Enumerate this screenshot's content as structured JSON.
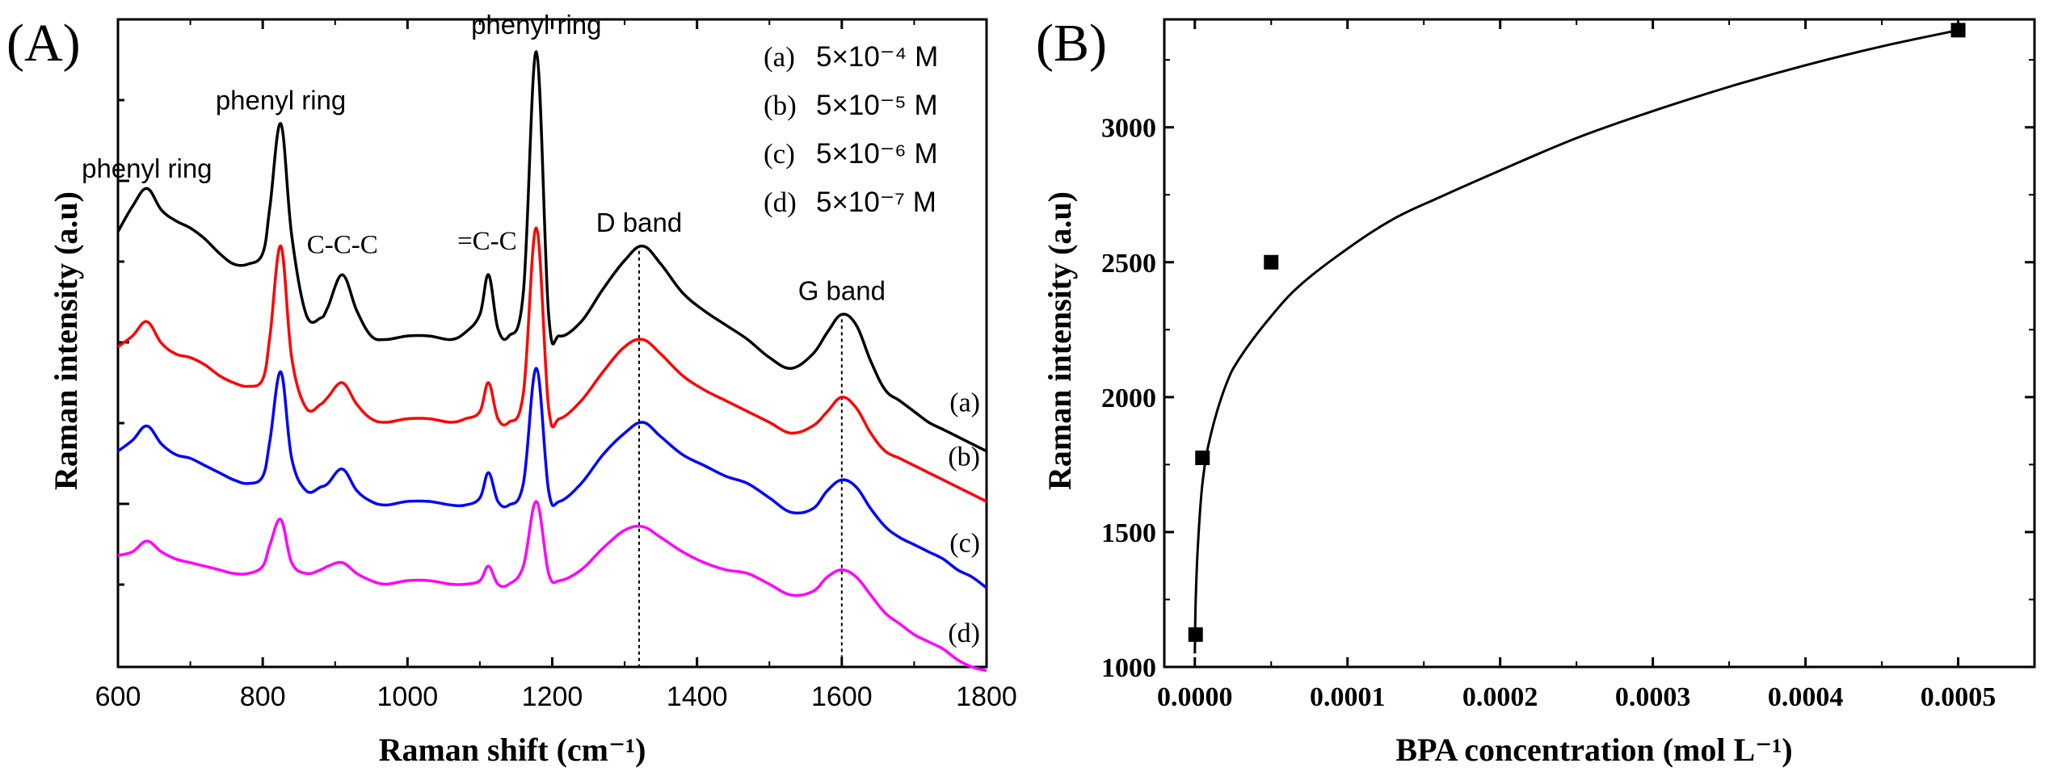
{
  "chart_data": [
    {
      "panel_label": "(A)",
      "type": "line",
      "title": "",
      "xlabel": "Raman shift (cm⁻¹)",
      "ylabel": "Raman intensity (a.u)",
      "xlim": [
        600,
        1800
      ],
      "x_ticks": [
        600,
        800,
        1000,
        1200,
        1400,
        1600,
        1800
      ],
      "ylim": [
        0,
        9
      ],
      "yticks_labels": "none",
      "legend": [
        {
          "tag": "(a)",
          "text": "5×10⁻⁴ M"
        },
        {
          "tag": "(b)",
          "text": "5×10⁻⁵ M"
        },
        {
          "tag": "(c)",
          "text": "5×10⁻⁶ M"
        },
        {
          "tag": "(d)",
          "text": "5×10⁻⁷ M"
        }
      ],
      "legend_position": "top-right",
      "x": [
        600,
        620,
        640,
        660,
        680,
        700,
        720,
        740,
        760,
        780,
        800,
        810,
        825,
        840,
        860,
        880,
        890,
        910,
        930,
        950,
        970,
        1000,
        1030,
        1060,
        1080,
        1100,
        1112,
        1125,
        1140,
        1160,
        1178,
        1195,
        1210,
        1240,
        1270,
        1300,
        1325,
        1350,
        1380,
        1410,
        1440,
        1470,
        1500,
        1530,
        1560,
        1580,
        1600,
        1620,
        1640,
        1660,
        1680,
        1700,
        1720,
        1740,
        1760,
        1780,
        1800
      ],
      "series": [
        {
          "name": "(a)",
          "color": "#000000",
          "values": [
            6.05,
            6.4,
            6.65,
            6.35,
            6.2,
            6.1,
            5.95,
            5.75,
            5.6,
            5.6,
            5.75,
            6.4,
            7.55,
            6.0,
            4.9,
            4.85,
            5.0,
            5.45,
            4.95,
            4.6,
            4.55,
            4.6,
            4.6,
            4.55,
            4.65,
            4.9,
            5.45,
            4.7,
            4.6,
            5.2,
            8.55,
            4.9,
            4.6,
            4.8,
            5.25,
            5.65,
            5.85,
            5.6,
            5.2,
            4.95,
            4.75,
            4.55,
            4.3,
            4.15,
            4.35,
            4.65,
            4.9,
            4.75,
            4.25,
            3.85,
            3.7,
            3.55,
            3.4,
            3.3,
            3.2,
            3.1,
            3.0
          ]
        },
        {
          "name": "(b)",
          "color": "#ff0000",
          "values": [
            4.45,
            4.6,
            4.8,
            4.5,
            4.35,
            4.3,
            4.2,
            4.05,
            3.95,
            3.9,
            4.0,
            4.6,
            5.85,
            4.3,
            3.6,
            3.65,
            3.75,
            3.95,
            3.65,
            3.45,
            3.4,
            3.45,
            3.45,
            3.4,
            3.45,
            3.55,
            3.95,
            3.45,
            3.4,
            3.8,
            6.1,
            3.6,
            3.45,
            3.7,
            4.1,
            4.45,
            4.55,
            4.35,
            4.05,
            3.85,
            3.7,
            3.55,
            3.4,
            3.25,
            3.35,
            3.55,
            3.75,
            3.6,
            3.25,
            3.0,
            2.9,
            2.8,
            2.7,
            2.6,
            2.5,
            2.4,
            2.3
          ]
        },
        {
          "name": "(c)",
          "color": "#0000ff",
          "values": [
            3.0,
            3.15,
            3.35,
            3.1,
            2.95,
            2.9,
            2.8,
            2.7,
            2.6,
            2.55,
            2.65,
            3.15,
            4.1,
            2.9,
            2.45,
            2.5,
            2.55,
            2.75,
            2.45,
            2.3,
            2.25,
            2.3,
            2.3,
            2.25,
            2.25,
            2.35,
            2.7,
            2.3,
            2.25,
            2.55,
            4.15,
            2.45,
            2.3,
            2.55,
            2.95,
            3.25,
            3.4,
            3.2,
            2.95,
            2.8,
            2.65,
            2.55,
            2.35,
            2.15,
            2.2,
            2.45,
            2.6,
            2.5,
            2.2,
            1.95,
            1.8,
            1.7,
            1.6,
            1.5,
            1.35,
            1.25,
            1.1
          ]
        },
        {
          "name": "(d)",
          "color": "#ff00ff",
          "values": [
            1.55,
            1.6,
            1.75,
            1.6,
            1.5,
            1.45,
            1.4,
            1.35,
            1.3,
            1.3,
            1.4,
            1.7,
            2.05,
            1.45,
            1.3,
            1.35,
            1.4,
            1.45,
            1.3,
            1.2,
            1.15,
            1.2,
            1.2,
            1.15,
            1.15,
            1.2,
            1.4,
            1.15,
            1.15,
            1.4,
            2.3,
            1.3,
            1.2,
            1.35,
            1.65,
            1.9,
            1.95,
            1.8,
            1.6,
            1.45,
            1.35,
            1.3,
            1.15,
            1.0,
            1.05,
            1.25,
            1.35,
            1.25,
            1.0,
            0.75,
            0.6,
            0.45,
            0.35,
            0.25,
            0.1,
            0.0,
            -0.05
          ]
        }
      ],
      "series_end_labels": [
        "(a)",
        "(b)",
        "(c)",
        "(d)"
      ],
      "reference_lines": [
        {
          "x": 1320,
          "style": "dotted",
          "label": "D band"
        },
        {
          "x": 1600,
          "style": "dotted",
          "label": "G band"
        }
      ],
      "annotations": [
        {
          "text": "phenyl ring",
          "x": 640,
          "y": 6.8,
          "font": "sans"
        },
        {
          "text": "phenyl ring",
          "x": 825,
          "y": 7.75,
          "font": "sans"
        },
        {
          "text": "C-C-C",
          "x": 910,
          "y": 5.75,
          "font": "serif"
        },
        {
          "text": "=C-C",
          "x": 1110,
          "y": 5.8,
          "font": "serif"
        },
        {
          "text": "phenyl ring",
          "x": 1178,
          "y": 8.8,
          "font": "sans"
        },
        {
          "text": "D band",
          "x": 1320,
          "y": 6.05,
          "font": "sans"
        },
        {
          "text": "G band",
          "x": 1600,
          "y": 5.1,
          "font": "sans"
        }
      ]
    },
    {
      "panel_label": "(B)",
      "type": "scatter",
      "title": "",
      "xlabel": "BPA concentration (mol L⁻¹)",
      "ylabel": "Raman intensity (a.u)",
      "xlim": [
        -2e-05,
        0.00055
      ],
      "ylim": [
        1000,
        3400
      ],
      "x_ticks": [
        0.0,
        0.0001,
        0.0002,
        0.0003,
        0.0004,
        0.0005
      ],
      "x_tick_labels": [
        "0.0000",
        "0.0001",
        "0.0002",
        "0.0003",
        "0.0004",
        "0.0005"
      ],
      "y_ticks": [
        1000,
        1500,
        2000,
        2500,
        3000
      ],
      "y_tick_labels": [
        "1000",
        "1500",
        "2000",
        "2500",
        "3000"
      ],
      "points": [
        {
          "x": 5e-07,
          "y": 1120
        },
        {
          "x": 5e-06,
          "y": 1775
        },
        {
          "x": 5e-05,
          "y": 2500
        },
        {
          "x": 0.0005,
          "y": 3360
        }
      ],
      "fit": {
        "type": "power",
        "description": "fitted curve through points",
        "x": [
          0.0,
          5e-07,
          2e-06,
          5e-06,
          1e-05,
          2e-05,
          3e-05,
          5e-05,
          7e-05,
          0.0001,
          0.00013,
          0.00016,
          0.0002,
          0.00025,
          0.0003,
          0.00035,
          0.0004,
          0.00045,
          0.0005
        ],
        "y": [
          1050,
          1230,
          1450,
          1680,
          1850,
          2040,
          2150,
          2300,
          2420,
          2550,
          2660,
          2740,
          2840,
          2960,
          3060,
          3150,
          3230,
          3300,
          3360
        ]
      }
    }
  ]
}
